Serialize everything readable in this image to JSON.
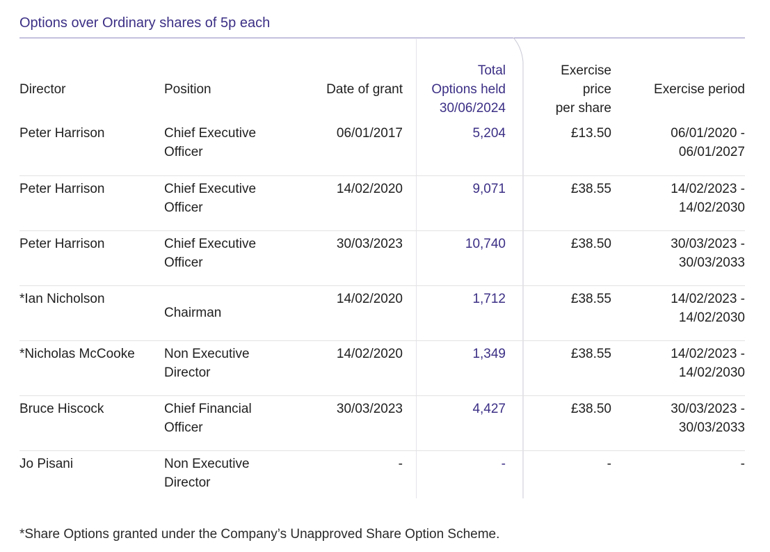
{
  "caption": "Options over Ordinary shares of 5p each",
  "headers": {
    "director": "Director",
    "position": "Position",
    "date_of_grant": "Date of grant",
    "total_line1": "Total",
    "total_line2": "Options held",
    "total_line3": "30/06/2024",
    "price_line1": "Exercise",
    "price_line2": "price",
    "price_line3": "per share",
    "period": "Exercise period"
  },
  "rows": [
    {
      "director": "Peter Harrison",
      "position_line1": "Chief Executive",
      "position_line2": "Officer",
      "date": "06/01/2017",
      "total": "5,204",
      "price": "£13.50",
      "period_line1": "06/01/2020 -",
      "period_line2": "06/01/2027"
    },
    {
      "director": "Peter Harrison",
      "position_line1": "Chief Executive",
      "position_line2": "Officer",
      "date": "14/02/2020",
      "total": "9,071",
      "price": "£38.55",
      "period_line1": "14/02/2023 -",
      "period_line2": "14/02/2030"
    },
    {
      "director": "Peter Harrison",
      "position_line1": "Chief Executive",
      "position_line2": "Officer",
      "date": "30/03/2023",
      "total": "10,740",
      "price": "£38.50",
      "period_line1": "30/03/2023 -",
      "period_line2": "30/03/2033"
    },
    {
      "director": "*Ian Nicholson",
      "position_line1": "Chairman",
      "position_line2": "",
      "date": "14/02/2020",
      "total": "1,712",
      "price": "£38.55",
      "period_line1": "14/02/2023 -",
      "period_line2": "14/02/2030"
    },
    {
      "director": "*Nicholas McCooke",
      "position_line1": "Non Executive",
      "position_line2": "Director",
      "date": "14/02/2020",
      "total": "1,349",
      "price": "£38.55",
      "period_line1": "14/02/2023 -",
      "period_line2": "14/02/2030"
    },
    {
      "director": "Bruce Hiscock",
      "position_line1": "Chief Financial",
      "position_line2": "Officer",
      "date": "30/03/2023",
      "total": "4,427",
      "price": "£38.50",
      "period_line1": "30/03/2023 -",
      "period_line2": "30/03/2033"
    },
    {
      "director": "Jo Pisani",
      "position_line1": "Non Executive",
      "position_line2": "Director",
      "date": "-",
      "total": "-",
      "price": "-",
      "period_line1": "-",
      "period_line2": ""
    }
  ],
  "footnote": "*Share Options granted under the Company’s Unapproved Share Option Scheme.",
  "colors": {
    "accent": "#3b2f85",
    "caption_rule": "#8f88c0",
    "row_divider": "#e2e2e2",
    "column_outline": "#c9c9d6"
  }
}
